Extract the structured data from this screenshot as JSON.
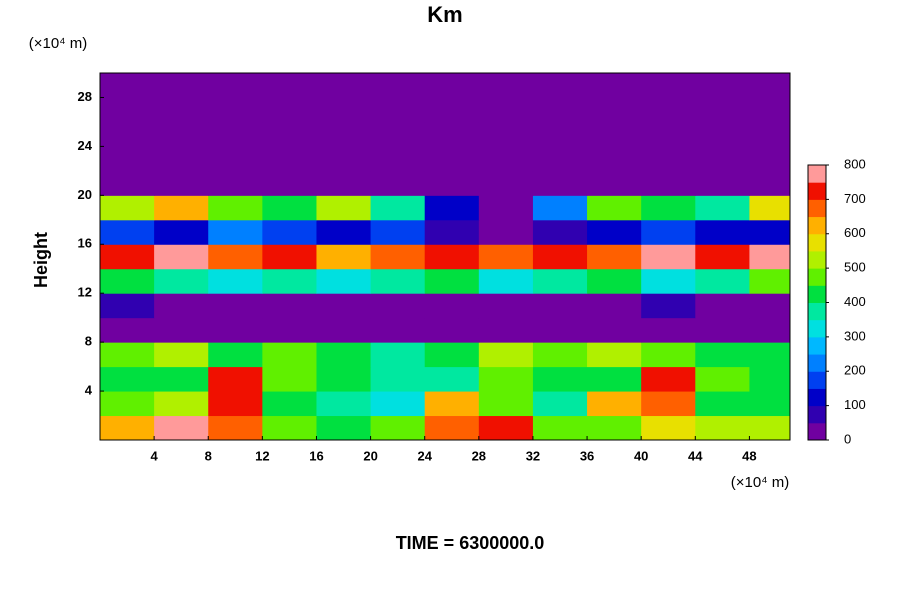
{
  "chart_data": {
    "type": "heatmap",
    "title": "Km",
    "ylabel": "Height",
    "y_unit": "(×10⁴ m)",
    "x_unit": "(×10⁴ m)",
    "footer": "TIME = 6300000.0",
    "xlim": [
      0,
      51
    ],
    "ylim": [
      0,
      30
    ],
    "xticks": [
      4,
      8,
      12,
      16,
      20,
      24,
      28,
      32,
      36,
      40,
      44,
      48
    ],
    "yticks": [
      4,
      8,
      12,
      16,
      20,
      24,
      28
    ],
    "x": [
      2,
      6,
      10,
      14,
      18,
      22,
      26,
      30,
      34,
      38,
      42,
      46,
      50
    ],
    "y": [
      1,
      3,
      5,
      7,
      9,
      11,
      13,
      15,
      17,
      19,
      21,
      23,
      25,
      27,
      29
    ],
    "z": [
      [
        600,
        750,
        650,
        450,
        400,
        450,
        650,
        700,
        450,
        450,
        550,
        500,
        500
      ],
      [
        450,
        500,
        700,
        400,
        350,
        300,
        600,
        450,
        350,
        600,
        650,
        400,
        400
      ],
      [
        400,
        400,
        700,
        450,
        400,
        350,
        350,
        450,
        400,
        400,
        700,
        450,
        400
      ],
      [
        450,
        500,
        400,
        450,
        400,
        350,
        400,
        500,
        450,
        500,
        450,
        400,
        400
      ],
      [
        0,
        0,
        0,
        0,
        0,
        0,
        0,
        0,
        0,
        0,
        0,
        0,
        0
      ],
      [
        50,
        0,
        0,
        0,
        0,
        0,
        0,
        0,
        0,
        0,
        50,
        0,
        0
      ],
      [
        400,
        350,
        300,
        350,
        300,
        350,
        400,
        300,
        350,
        400,
        300,
        350,
        450
      ],
      [
        700,
        750,
        650,
        700,
        600,
        650,
        700,
        650,
        700,
        650,
        750,
        700,
        750
      ],
      [
        150,
        100,
        200,
        150,
        100,
        150,
        50,
        0,
        50,
        100,
        150,
        100,
        100
      ],
      [
        500,
        600,
        450,
        400,
        500,
        350,
        100,
        0,
        200,
        450,
        400,
        350,
        550
      ],
      [
        0,
        0,
        0,
        0,
        0,
        0,
        0,
        0,
        0,
        0,
        0,
        0,
        0
      ],
      [
        0,
        0,
        0,
        0,
        0,
        0,
        0,
        0,
        0,
        0,
        0,
        0,
        0
      ],
      [
        0,
        0,
        0,
        0,
        0,
        0,
        0,
        0,
        0,
        0,
        0,
        0,
        0
      ],
      [
        0,
        0,
        0,
        0,
        0,
        0,
        0,
        0,
        0,
        0,
        0,
        0,
        0
      ],
      [
        0,
        0,
        0,
        0,
        0,
        0,
        0,
        0,
        0,
        0,
        0,
        0,
        0
      ]
    ],
    "colorbar": {
      "lim": [
        0,
        800
      ],
      "ticks": [
        0,
        100,
        200,
        300,
        400,
        500,
        600,
        700,
        800
      ],
      "colors": [
        "#7000a0",
        "#3000b0",
        "#0000c8",
        "#0040f0",
        "#0080ff",
        "#00b8ff",
        "#00e0e0",
        "#00e8a0",
        "#00e040",
        "#60f000",
        "#b0f000",
        "#e8e000",
        "#ffb000",
        "#ff6000",
        "#f01000",
        "#ff9a9a"
      ]
    }
  }
}
